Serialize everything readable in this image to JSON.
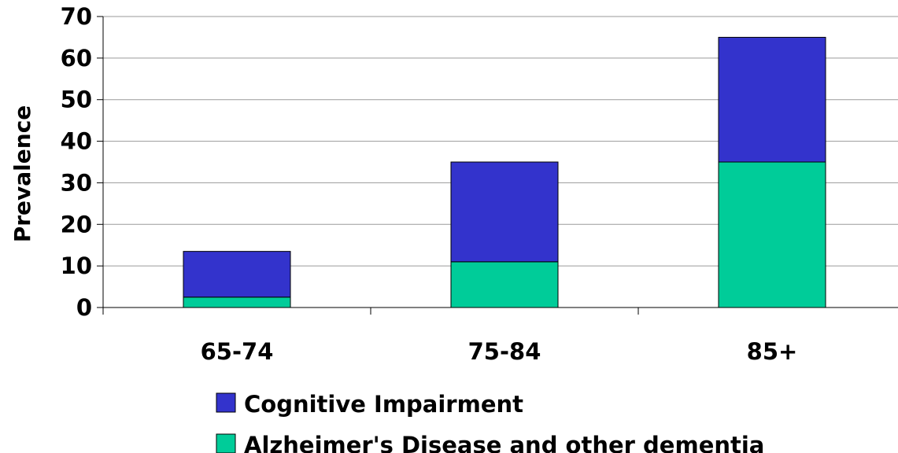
{
  "chart_data": {
    "type": "bar",
    "stacked": true,
    "title": "",
    "xlabel": "",
    "ylabel": "Prevalence",
    "ylim": [
      0,
      70
    ],
    "yticks": [
      0,
      10,
      20,
      30,
      40,
      50,
      60,
      70
    ],
    "grid": true,
    "legend_position": "bottom",
    "categories": [
      "65-74",
      "75-84",
      "85+"
    ],
    "series": [
      {
        "name": "Alzheimer's Disease and other dementia",
        "color": "#00cc99",
        "values": [
          2.5,
          11,
          35
        ]
      },
      {
        "name": "Cognitive Impairment",
        "color": "#3333cc",
        "values": [
          11,
          24,
          30
        ]
      }
    ]
  }
}
